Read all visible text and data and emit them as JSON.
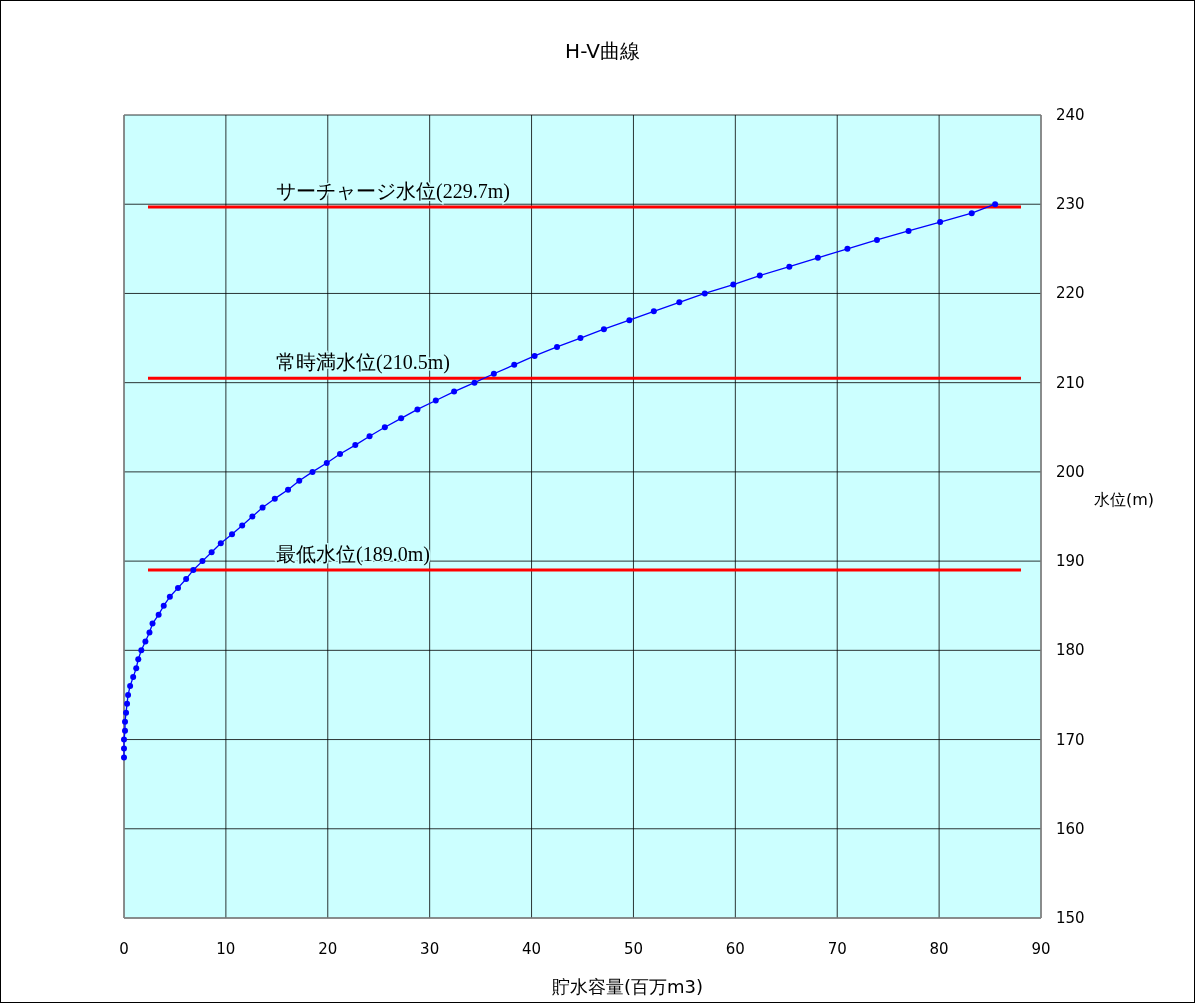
{
  "chart_data": {
    "type": "line",
    "title": "H-V曲線",
    "xlabel": "貯水容量(百万m3)",
    "ylabel": "水位(m)",
    "x": [
      0,
      0,
      0,
      0.1,
      0.1,
      0.2,
      0.3,
      0.4,
      0.6,
      0.9,
      1.2,
      1.4,
      1.7,
      2.1,
      2.5,
      2.8,
      3.4,
      3.9,
      4.5,
      5.3,
      6.1,
      6.8,
      7.7,
      8.6,
      9.5,
      10.6,
      11.6,
      12.6,
      13.6,
      14.8,
      16.1,
      17.2,
      18.5,
      19.9,
      21.2,
      22.7,
      24.1,
      25.6,
      27.2,
      28.8,
      30.6,
      32.4,
      34.4,
      36.3,
      38.3,
      40.3,
      42.5,
      44.8,
      47.1,
      49.6,
      52.0,
      54.5,
      57.0,
      59.8,
      62.4,
      65.3,
      68.1,
      71.0,
      73.9,
      77.0,
      80.1,
      83.2,
      85.5
    ],
    "series": [
      {
        "color": "#0000ff",
        "values": [
          168,
          169,
          170,
          171,
          172,
          173,
          174,
          175,
          176,
          177,
          178,
          179,
          180,
          181,
          182,
          183,
          184,
          185,
          186,
          187,
          188,
          189,
          190,
          191,
          192,
          193,
          194,
          195,
          196,
          197,
          198,
          199,
          200,
          201,
          202,
          203,
          204,
          205,
          206,
          207,
          208,
          209,
          210,
          211,
          212,
          213,
          214,
          215,
          216,
          217,
          218,
          219,
          220,
          221,
          222,
          223,
          224,
          225,
          226,
          227,
          228,
          229,
          230
        ]
      }
    ],
    "xlim": [
      0,
      90
    ],
    "xticks": [
      0,
      10,
      20,
      30,
      40,
      50,
      60,
      70,
      80,
      90
    ],
    "ylim": [
      150,
      240
    ],
    "yticks": [
      150,
      160,
      170,
      180,
      190,
      200,
      210,
      220,
      230,
      240
    ],
    "grid": true,
    "marker": "circle",
    "line_style": "solid",
    "ref_lines": [
      {
        "axis": "y",
        "value": 229.7,
        "label": "サーチャージ水位(229.7m)",
        "color": "#ff0000"
      },
      {
        "axis": "y",
        "value": 210.5,
        "label": "常時満水位(210.5m)",
        "color": "#ff0000"
      },
      {
        "axis": "y",
        "value": 189.0,
        "label": "最低水位(189.0m)",
        "color": "#ff0000"
      }
    ]
  }
}
